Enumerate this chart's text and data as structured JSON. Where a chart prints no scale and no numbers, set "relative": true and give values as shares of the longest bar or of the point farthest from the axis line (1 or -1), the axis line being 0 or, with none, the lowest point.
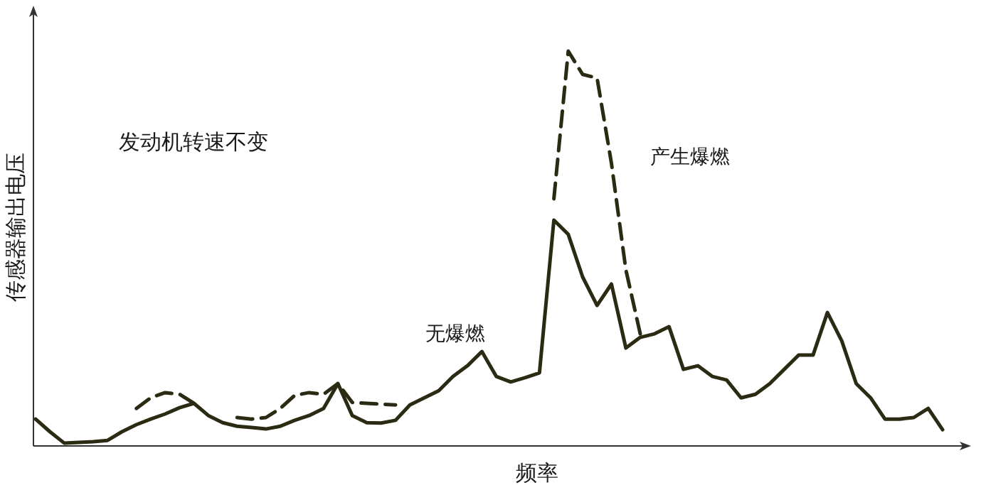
{
  "chart_data": {
    "type": "line",
    "relative": true,
    "xlabel": "频率",
    "ylabel": "传感器输出电压",
    "annotations": [
      "发动机转速不变"
    ],
    "categories": [
      null,
      null,
      null,
      null,
      null,
      null,
      null,
      null,
      null,
      null,
      null,
      null,
      null,
      null,
      null,
      null,
      null,
      null,
      null,
      null,
      null,
      null,
      null,
      null,
      null,
      null,
      null,
      null,
      null,
      null,
      null,
      null,
      null,
      null,
      null,
      null,
      null,
      null,
      null,
      null,
      null,
      null,
      null,
      null,
      null,
      null,
      null,
      null,
      null,
      null,
      null,
      null,
      null,
      null,
      null,
      null,
      null,
      null,
      null,
      null,
      null,
      null,
      null,
      null
    ],
    "series": [
      {
        "name": "无爆燃",
        "color": "#2b2a12",
        "line_style": "solid",
        "values": [
          0.068,
          0.036,
          0.007,
          0.009,
          0.011,
          0.014,
          0.036,
          0.054,
          0.068,
          0.081,
          0.097,
          0.108,
          0.077,
          0.059,
          0.05,
          0.047,
          0.043,
          0.05,
          0.065,
          0.077,
          0.095,
          0.158,
          0.077,
          0.059,
          0.058,
          0.065,
          0.104,
          0.122,
          0.14,
          0.176,
          0.203,
          0.239,
          0.176,
          0.162,
          0.173,
          0.185,
          0.572,
          0.536,
          0.428,
          0.356,
          0.41,
          0.248,
          0.275,
          0.284,
          0.302,
          0.194,
          0.203,
          0.176,
          0.167,
          0.122,
          0.131,
          0.158,
          0.194,
          0.23,
          0.23,
          0.338,
          0.266,
          0.158,
          0.122,
          0.068,
          0.068,
          0.072,
          0.095,
          0.041
        ]
      },
      {
        "name": "产生爆燃",
        "color": "#2b2a12",
        "line_style": "dashed",
        "values": [
          null,
          null,
          null,
          null,
          null,
          null,
          null,
          0.095,
          0.122,
          0.135,
          0.131,
          0.108,
          null,
          null,
          0.072,
          0.068,
          0.072,
          0.095,
          0.128,
          0.135,
          0.131,
          0.158,
          0.11,
          0.108,
          0.106,
          0.104,
          null,
          null,
          null,
          null,
          null,
          null,
          null,
          null,
          null,
          null,
          0.626,
          1.0,
          0.941,
          0.932,
          0.716,
          0.446,
          0.284,
          null,
          null,
          null,
          null,
          null,
          null,
          null,
          null,
          null,
          null,
          null,
          null,
          null,
          null,
          null,
          null,
          null,
          null,
          null,
          null,
          null
        ]
      }
    ]
  }
}
